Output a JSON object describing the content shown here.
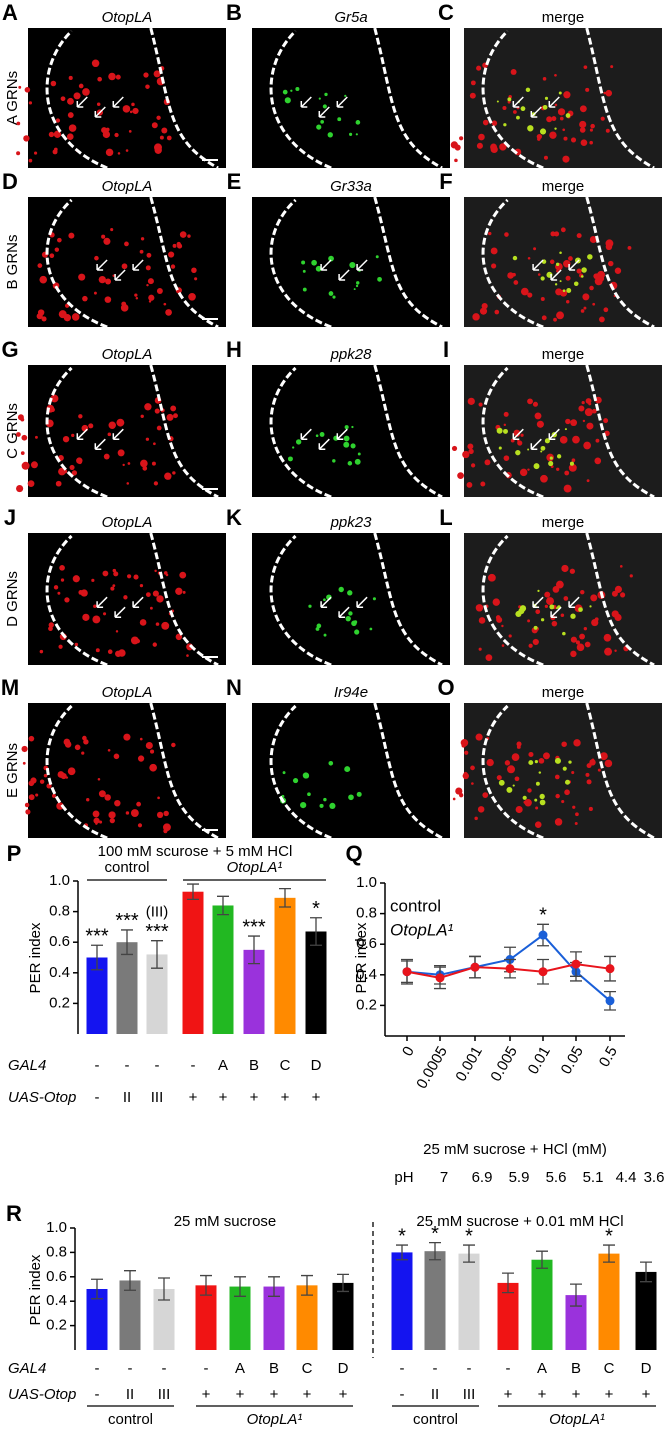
{
  "rows": [
    {
      "label": "A GRNs",
      "panels": [
        {
          "letter": "A",
          "title": "OtopLA"
        },
        {
          "letter": "B",
          "title": "Gr5a"
        },
        {
          "letter": "C",
          "title": "merge"
        }
      ]
    },
    {
      "label": "B GRNs",
      "panels": [
        {
          "letter": "D",
          "title": "OtopLA"
        },
        {
          "letter": "E",
          "title": "Gr33a"
        },
        {
          "letter": "F",
          "title": "merge"
        }
      ]
    },
    {
      "label": "C GRNs",
      "panels": [
        {
          "letter": "G",
          "title": "OtopLA"
        },
        {
          "letter": "H",
          "title": "ppk28"
        },
        {
          "letter": "I",
          "title": "merge"
        }
      ]
    },
    {
      "label": "D GRNs",
      "panels": [
        {
          "letter": "J",
          "title": "OtopLA"
        },
        {
          "letter": "K",
          "title": "ppk23"
        },
        {
          "letter": "L",
          "title": "merge"
        }
      ]
    },
    {
      "label": "E GRNs",
      "panels": [
        {
          "letter": "M",
          "title": "OtopLA"
        },
        {
          "letter": "N",
          "title": "Ir94e"
        },
        {
          "letter": "O",
          "title": "merge"
        }
      ]
    }
  ],
  "chart_data": [
    {
      "type": "bar",
      "letter": "P",
      "title": "100 mM scurose + 5 mM HCl",
      "ylabel": "PER index",
      "ylim": [
        0,
        1
      ],
      "yticks": [
        0.2,
        0.4,
        0.6,
        0.8,
        {
          "value": 1,
          "label": "1.0"
        }
      ],
      "values": [
        0.5,
        0.6,
        0.52,
        0.93,
        0.84,
        0.55,
        0.89,
        0.67
      ],
      "errors": [
        0.08,
        0.08,
        0.09,
        0.05,
        0.06,
        0.09,
        0.06,
        0.09
      ],
      "colors": [
        "#1414f0",
        "#7a7a7a",
        "#d6d6d6",
        "#f01414",
        "#22b822",
        "#9a32dc",
        "#ff8a00",
        "#000000"
      ],
      "stars": [
        "***",
        "***",
        "***",
        null,
        null,
        "***",
        null,
        "*"
      ],
      "star_color": "#e8141c",
      "bar_notes": [
        null,
        null,
        "(III)",
        null,
        null,
        null,
        null,
        null
      ],
      "groups": [
        {
          "label": "control",
          "size": 3
        },
        {
          "label": "OtopLA¹",
          "size": 5
        }
      ],
      "row_labels": [
        "GAL4",
        "UAS-Otop"
      ],
      "rows": [
        [
          "-",
          "-",
          "-",
          "-",
          "A",
          "B",
          "C",
          "D"
        ],
        [
          "-",
          "II",
          "III",
          "+",
          "+",
          "+",
          "+",
          "+"
        ]
      ]
    },
    {
      "type": "line",
      "letter": "Q",
      "ylabel": "PER index",
      "ylim": [
        0,
        1
      ],
      "yticks": [
        0.2,
        0.4,
        0.6,
        0.8,
        {
          "value": 1,
          "label": "1.0"
        }
      ],
      "categories": [
        "0",
        "0.0005",
        "0.001",
        "0.005",
        "0.01",
        "0.05",
        "0.5"
      ],
      "series": [
        {
          "name": "control",
          "color": "#1a5fd8",
          "values": [
            0.42,
            0.4,
            0.45,
            0.5,
            0.66,
            0.42,
            0.23
          ],
          "errors": [
            0.07,
            0.06,
            0.07,
            0.08,
            0.07,
            0.06,
            0.06
          ]
        },
        {
          "name": "OtopLA¹",
          "color": "#e8141c",
          "values": [
            0.42,
            0.38,
            0.45,
            0.44,
            0.42,
            0.47,
            0.44
          ],
          "errors": [
            0.08,
            0.07,
            0.07,
            0.06,
            0.08,
            0.08,
            0.08
          ]
        }
      ],
      "stars": [
        null,
        null,
        null,
        null,
        "*",
        null,
        null
      ],
      "star_color": "#000000",
      "xlabel": "25 mM sucrose + HCl (mM)",
      "ph_label": "pH",
      "ph": [
        7,
        6.9,
        5.9,
        5.6,
        5.1,
        4.4,
        3.6
      ]
    },
    {
      "type": "grouped-bar",
      "letter": "R",
      "ylabel": "PER index",
      "ylim": [
        0,
        1
      ],
      "yticks": [
        0.2,
        0.4,
        0.6,
        0.8,
        {
          "value": 1,
          "label": "1.0"
        }
      ],
      "colors": [
        "#1414f0",
        "#7a7a7a",
        "#d6d6d6",
        "#f01414",
        "#22b822",
        "#9a32dc",
        "#ff8a00",
        "#000000"
      ],
      "star_color": "#e8141c",
      "row_labels": [
        "GAL4",
        "UAS-Otop"
      ],
      "panels": [
        {
          "title": "25 mM sucrose",
          "values": [
            0.5,
            0.57,
            0.5,
            0.53,
            0.52,
            0.52,
            0.53,
            0.55
          ],
          "errors": [
            0.08,
            0.08,
            0.09,
            0.08,
            0.08,
            0.08,
            0.08,
            0.07
          ],
          "stars": [
            null,
            null,
            null,
            null,
            null,
            null,
            null,
            null
          ],
          "rows": [
            [
              "-",
              "-",
              "-",
              "-",
              "A",
              "B",
              "C",
              "D"
            ],
            [
              "-",
              "II",
              "III",
              "+",
              "+",
              "+",
              "+",
              "+"
            ]
          ],
          "groups": [
            {
              "label": "control",
              "size": 3
            },
            {
              "label": "OtopLA¹",
              "size": 5
            }
          ]
        },
        {
          "title": "25 mM sucrose + 0.01 mM HCl",
          "values": [
            0.8,
            0.81,
            0.79,
            0.55,
            0.74,
            0.45,
            0.79,
            0.64
          ],
          "errors": [
            0.06,
            0.07,
            0.07,
            0.08,
            0.07,
            0.09,
            0.07,
            0.08
          ],
          "stars": [
            "*",
            "*",
            "*",
            null,
            null,
            null,
            "*",
            null
          ],
          "rows": [
            [
              "-",
              "-",
              "-",
              "-",
              "A",
              "B",
              "C",
              "D"
            ],
            [
              "-",
              "II",
              "III",
              "+",
              "+",
              "+",
              "+",
              "+"
            ]
          ],
          "groups": [
            {
              "label": "control",
              "size": 3
            },
            {
              "label": "OtopLA¹",
              "size": 5
            }
          ]
        }
      ]
    }
  ]
}
